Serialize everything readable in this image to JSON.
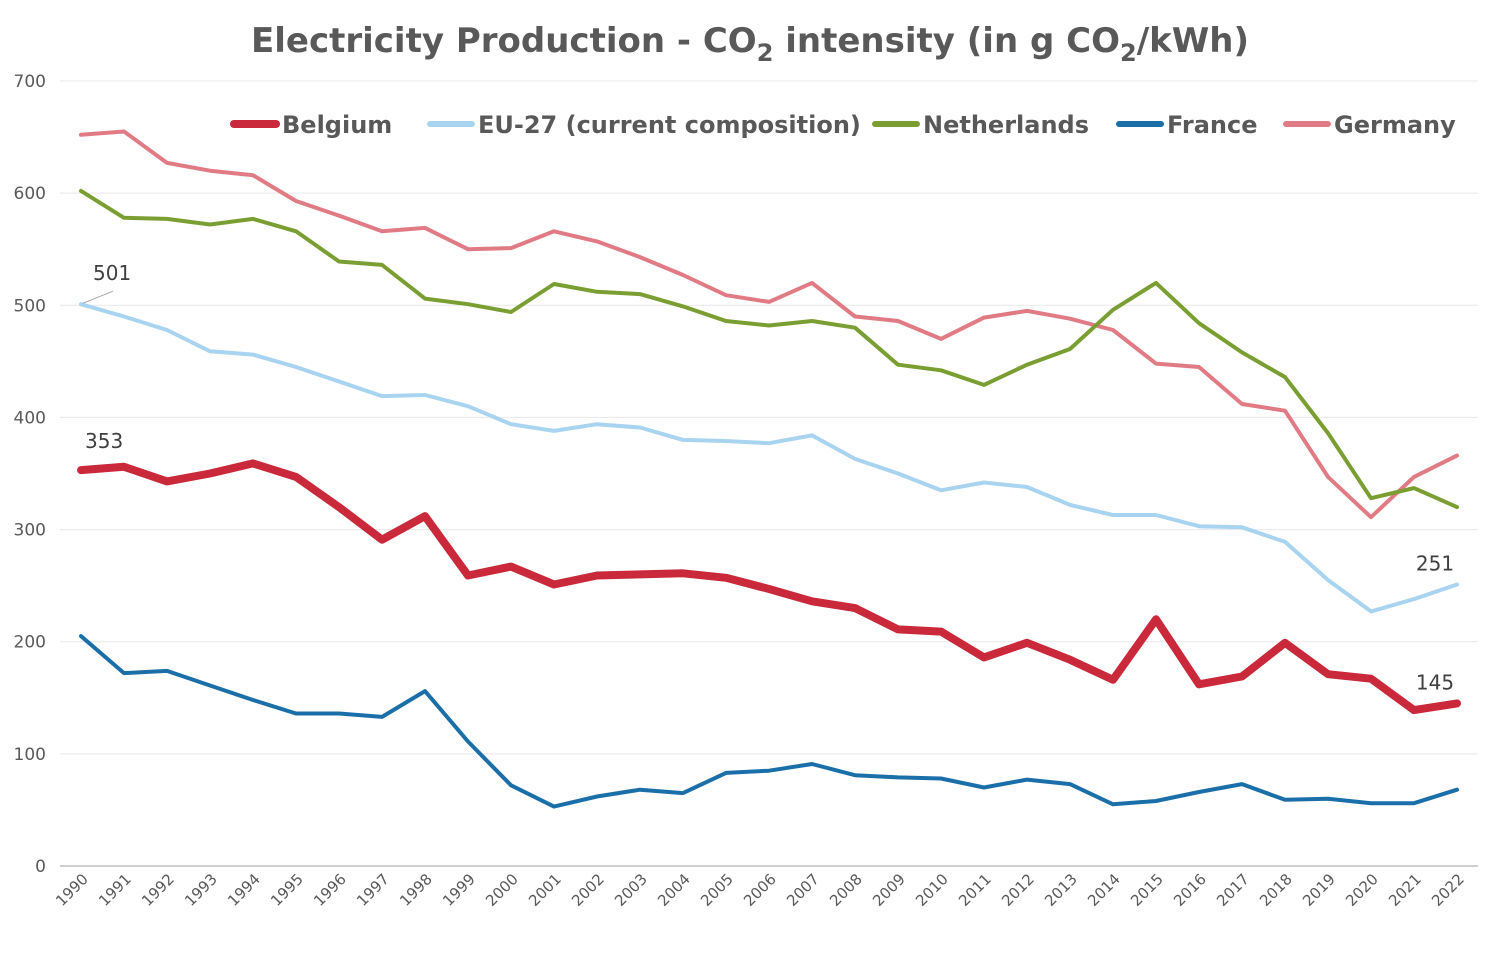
{
  "chart_data": {
    "type": "line",
    "title": {
      "prefix": "Electricity Production - CO",
      "sub1": "2",
      "middle": " intensity (in g CO",
      "sub2": "2",
      "suffix": "/kWh)"
    },
    "xlabel": "",
    "ylabel": "",
    "ylim": [
      0,
      700
    ],
    "yticks": [
      0,
      100,
      200,
      300,
      400,
      500,
      600,
      700
    ],
    "grid": true,
    "legend_position": "top",
    "x": [
      "1990",
      "1991",
      "1992",
      "1993",
      "1994",
      "1995",
      "1996",
      "1997",
      "1998",
      "1999",
      "2000",
      "2001",
      "2002",
      "2003",
      "2004",
      "2005",
      "2006",
      "2007",
      "2008",
      "2009",
      "2010",
      "2011",
      "2012",
      "2013",
      "2014",
      "2015",
      "2016",
      "2017",
      "2018",
      "2019",
      "2020",
      "2021",
      "2022"
    ],
    "series": [
      {
        "name": "Germany",
        "color": "#e07b85",
        "width": 4,
        "values": [
          652,
          655,
          627,
          620,
          616,
          593,
          580,
          566,
          569,
          550,
          551,
          566,
          557,
          543,
          527,
          509,
          503,
          520,
          490,
          486,
          470,
          489,
          495,
          488,
          478,
          448,
          445,
          412,
          406,
          347,
          311,
          347,
          366
        ]
      },
      {
        "name": "Netherlands",
        "color": "#7a9e32",
        "width": 4,
        "values": [
          602,
          578,
          577,
          572,
          577,
          566,
          539,
          536,
          506,
          501,
          494,
          519,
          512,
          510,
          499,
          486,
          482,
          486,
          480,
          447,
          442,
          429,
          447,
          461,
          496,
          520,
          484,
          458,
          436,
          386,
          328,
          337,
          320
        ]
      },
      {
        "name": "EU-27 (current composition)",
        "color": "#a8d4ef",
        "width": 4,
        "values": [
          501,
          490,
          478,
          459,
          456,
          445,
          432,
          419,
          420,
          410,
          394,
          388,
          394,
          391,
          380,
          379,
          377,
          384,
          363,
          350,
          335,
          342,
          338,
          322,
          313,
          313,
          303,
          302,
          289,
          255,
          227,
          238,
          251
        ]
      },
      {
        "name": "France",
        "color": "#1a6fa8",
        "width": 4,
        "values": [
          205,
          172,
          174,
          161,
          148,
          136,
          136,
          133,
          156,
          111,
          72,
          53,
          62,
          68,
          65,
          83,
          85,
          91,
          81,
          79,
          78,
          70,
          77,
          73,
          55,
          58,
          66,
          73,
          59,
          60,
          56,
          56,
          68
        ]
      },
      {
        "name": "Belgium",
        "color": "#c9293a",
        "width": 8,
        "values": [
          353,
          356,
          343,
          350,
          359,
          347,
          320,
          291,
          312,
          259,
          267,
          251,
          259,
          260,
          261,
          257,
          247,
          236,
          230,
          211,
          209,
          186,
          199,
          184,
          166,
          220,
          162,
          169,
          199,
          171,
          167,
          139,
          145
        ]
      }
    ],
    "legend_order": [
      "Belgium",
      "EU-27 (current composition)",
      "Netherlands",
      "France",
      "Germany"
    ],
    "annotations": [
      {
        "text": "501",
        "series": "EU-27 (current composition)",
        "x": "1990",
        "leader": true
      },
      {
        "text": "353",
        "series": "Belgium",
        "x": "1990",
        "leader": false
      },
      {
        "text": "251",
        "series": "EU-27 (current composition)",
        "x": "2022",
        "leader": false
      },
      {
        "text": "145",
        "series": "Belgium",
        "x": "2022",
        "leader": false
      }
    ]
  }
}
